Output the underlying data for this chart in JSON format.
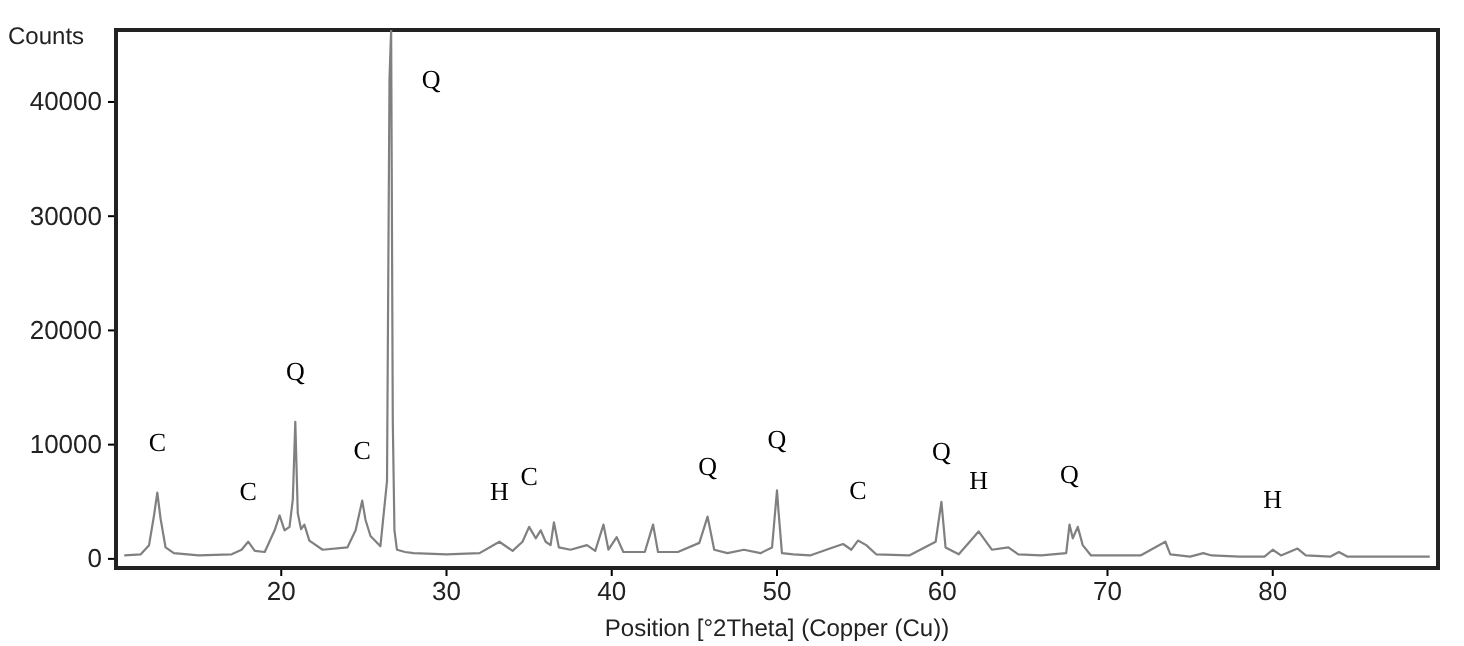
{
  "chart_data": {
    "type": "line",
    "xlabel": "Position [°2Theta] (Copper (Cu))",
    "ylabel": "Counts",
    "xlim": [
      10,
      90
    ],
    "ylim": [
      -800,
      46300
    ],
    "xticks": [
      20,
      30,
      40,
      50,
      60,
      70,
      80
    ],
    "yticks": [
      0,
      10000,
      20000,
      30000,
      40000
    ],
    "grid": false,
    "marker": "none",
    "line_style": "solid",
    "series": [
      {
        "color": "#808080",
        "x": [
          10.5,
          11.5,
          12,
          12.3,
          12.5,
          12.7,
          13,
          13.5,
          15,
          17,
          17.6,
          18,
          18.4,
          19,
          19.6,
          19.9,
          20.2,
          20.5,
          20.7,
          20.85,
          21,
          21.2,
          21.4,
          21.7,
          22.5,
          24,
          24.5,
          24.9,
          25.1,
          25.4,
          26,
          26.4,
          26.55,
          26.65,
          26.75,
          26.85,
          27,
          27.5,
          28,
          30,
          32,
          33.2,
          34,
          34.6,
          35,
          35.4,
          35.7,
          36,
          36.3,
          36.5,
          36.8,
          37.5,
          38.5,
          39,
          39.5,
          39.8,
          40.3,
          40.7,
          42,
          42.5,
          42.8,
          44,
          45.3,
          45.8,
          46.2,
          47,
          48,
          49,
          49.7,
          50,
          50.1,
          50.3,
          51,
          52,
          53.2,
          54,
          54.5,
          54.9,
          55.4,
          56,
          58,
          59.6,
          59.95,
          60.2,
          61,
          62.2,
          63,
          64,
          64.6,
          66,
          67.5,
          67.7,
          67.9,
          68.2,
          68.5,
          69,
          72,
          73.5,
          73.8,
          75,
          75.8,
          76.3,
          78,
          79.5,
          80,
          80.5,
          81.5,
          82,
          83.5,
          84,
          84.5,
          86,
          89.5
        ],
        "values": [
          300,
          400,
          1200,
          3800,
          5800,
          3500,
          1000,
          500,
          300,
          400,
          800,
          1500,
          700,
          600,
          2500,
          3800,
          2500,
          2800,
          5200,
          12000,
          4000,
          2600,
          3000,
          1600,
          800,
          1000,
          2500,
          5100,
          3400,
          2000,
          1100,
          6800,
          42000,
          46300,
          12000,
          2500,
          800,
          600,
          500,
          400,
          500,
          1500,
          700,
          1500,
          2800,
          1800,
          2500,
          1500,
          1200,
          3200,
          1000,
          800,
          1200,
          700,
          3000,
          800,
          1900,
          600,
          600,
          3000,
          600,
          600,
          1400,
          3700,
          800,
          500,
          800,
          500,
          1000,
          6000,
          4000,
          500,
          400,
          300,
          900,
          1300,
          800,
          1600,
          1200,
          400,
          300,
          1500,
          5000,
          1000,
          400,
          2400,
          800,
          1000,
          400,
          300,
          500,
          3000,
          1800,
          2800,
          1200,
          300,
          300,
          1500,
          400,
          200,
          500,
          300,
          200,
          200,
          800,
          300,
          900,
          300,
          200,
          600,
          200,
          200,
          200
        ]
      }
    ],
    "annotations": [
      {
        "text": "C",
        "x": 12.5,
        "y": 5800
      },
      {
        "text": "C",
        "x": 18,
        "y": 1500
      },
      {
        "text": "Q",
        "x": 20.85,
        "y": 12000
      },
      {
        "text": "C",
        "x": 24.9,
        "y": 5100
      },
      {
        "text": "Q",
        "x": 26.65,
        "y": 46300
      },
      {
        "text": "H",
        "x": 33.2,
        "y": 1500
      },
      {
        "text": "C",
        "x": 35,
        "y": 2800
      },
      {
        "text": "Q",
        "x": 45.8,
        "y": 3700
      },
      {
        "text": "Q",
        "x": 50,
        "y": 6000
      },
      {
        "text": "C",
        "x": 54.9,
        "y": 1600
      },
      {
        "text": "Q",
        "x": 59.95,
        "y": 5000
      },
      {
        "text": "H",
        "x": 62.2,
        "y": 2400
      },
      {
        "text": "Q",
        "x": 67.7,
        "y": 3000
      },
      {
        "text": "H",
        "x": 80,
        "y": 800
      }
    ]
  }
}
